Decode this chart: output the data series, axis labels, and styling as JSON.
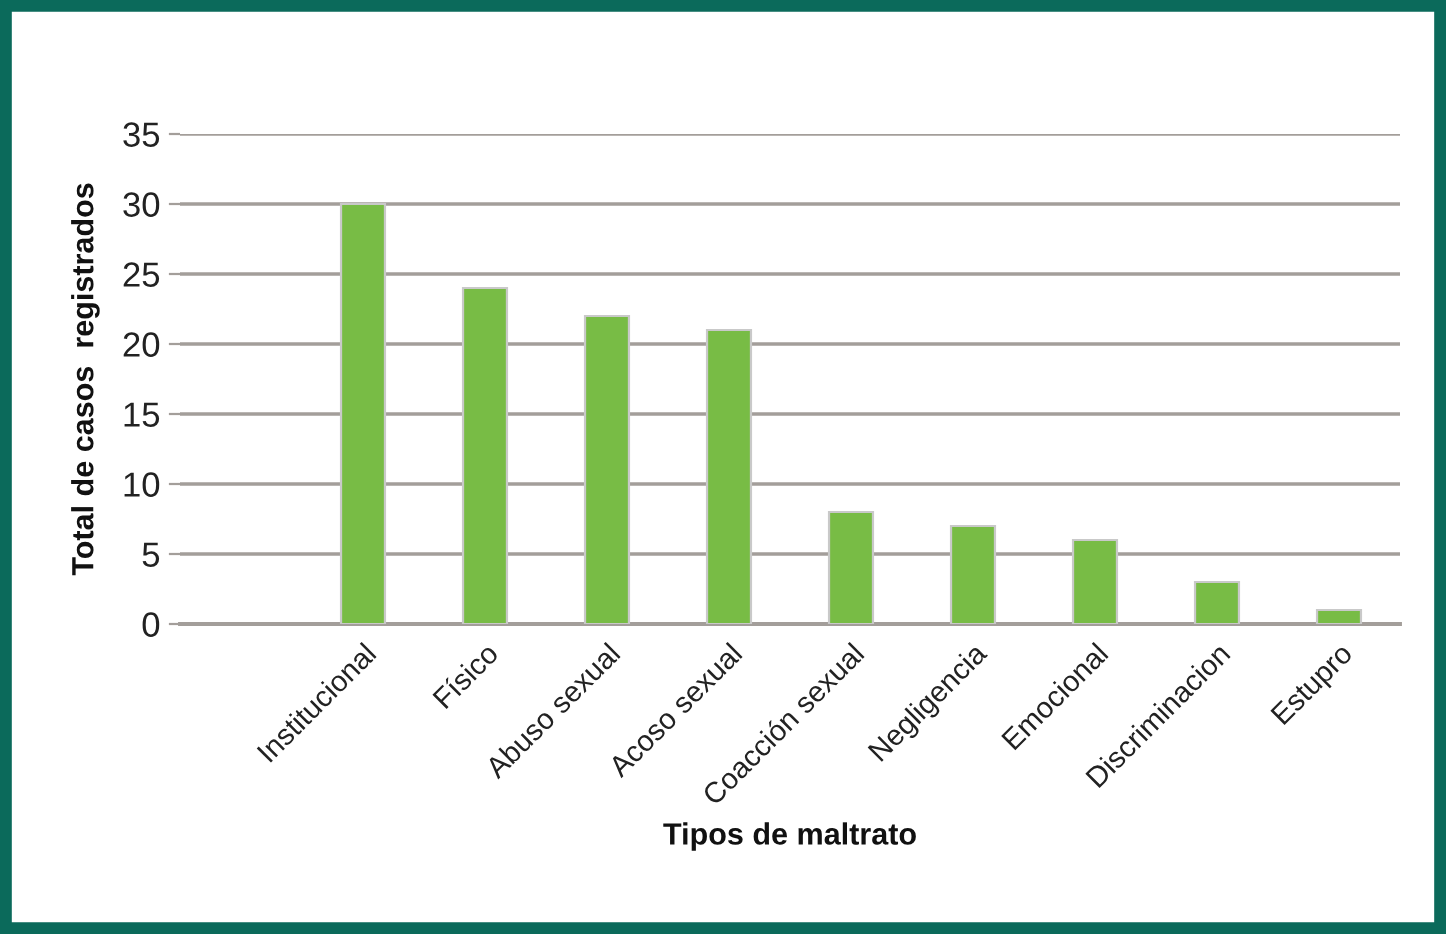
{
  "chart_data": {
    "type": "bar",
    "xlabel": "Tipos de maltrato",
    "ylabel": "Total de casos  registrados",
    "categories": [
      null,
      "Institucional",
      "Físico",
      "Abuso sexual",
      "Acoso sexual",
      "Coacción sexual",
      "Negligencia",
      "Emocional",
      "Discriminacion",
      "Estupro"
    ],
    "values": [
      null,
      30,
      24,
      22,
      21,
      8,
      7,
      6,
      3,
      1
    ],
    "color": "#78bc45",
    "ylim": [
      0,
      35
    ],
    "yticks": [
      0,
      5,
      10,
      15,
      20,
      25,
      30,
      35
    ],
    "grid": "y"
  }
}
